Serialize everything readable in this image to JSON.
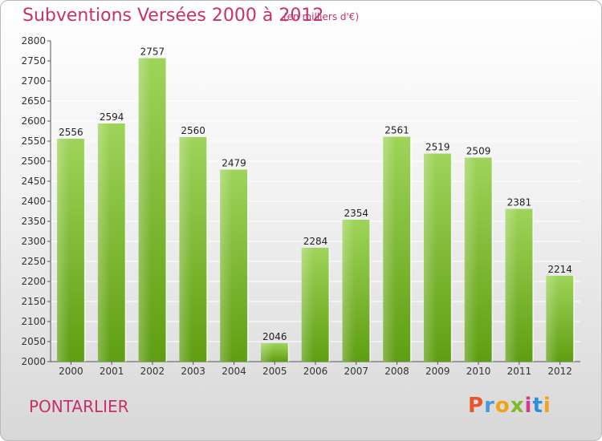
{
  "header": {
    "title": "Subventions Versées 2000 à 2012",
    "unit": "(en milliers d'€)"
  },
  "footer": {
    "city": "PONTARLIER",
    "logo_letters": [
      "P",
      "r",
      "o",
      "x",
      "i",
      "t",
      "i"
    ],
    "logo_colors": [
      "#e8552a",
      "#4a9ad6",
      "#f0a21a",
      "#80b92c",
      "#d53c8a",
      "#2d8fd6",
      "#f0a21a"
    ]
  },
  "colors": {
    "bar_top": "#9fd45a",
    "bar_bottom": "#5f9e12",
    "grid": "#ffffff",
    "text_accent": "#c8306a"
  },
  "chart_data": {
    "type": "bar",
    "title": "Subventions Versées 2000 à 2012",
    "subtitle": "(en milliers d'€)",
    "categories": [
      "2000",
      "2001",
      "2002",
      "2003",
      "2004",
      "2005",
      "2006",
      "2007",
      "2008",
      "2009",
      "2010",
      "2011",
      "2012"
    ],
    "values": [
      2556,
      2594,
      2757,
      2560,
      2479,
      2046,
      2284,
      2354,
      2561,
      2519,
      2509,
      2381,
      2214
    ],
    "ylim": [
      2000,
      2800
    ],
    "yticks": [
      2000,
      2050,
      2100,
      2150,
      2200,
      2250,
      2300,
      2350,
      2400,
      2450,
      2500,
      2550,
      2600,
      2650,
      2700,
      2750,
      2800
    ],
    "grid": true,
    "xlabel": "",
    "ylabel": ""
  }
}
